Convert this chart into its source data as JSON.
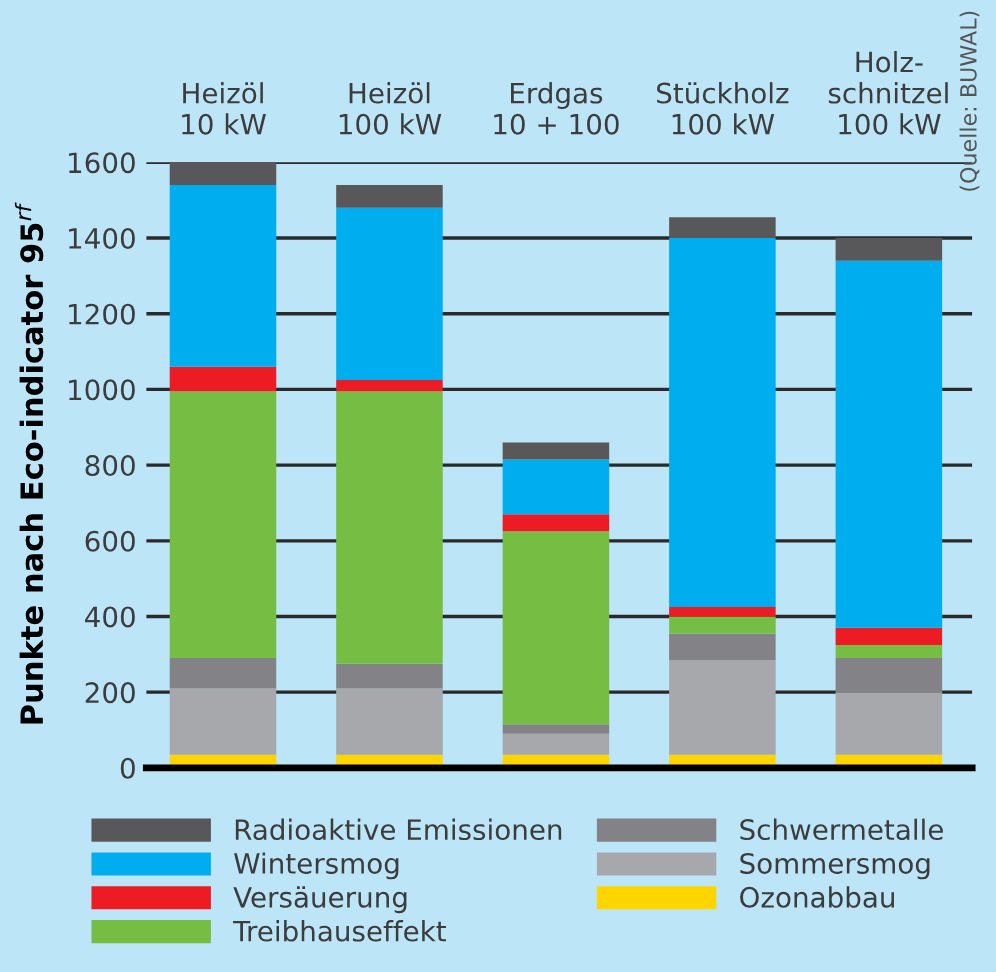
{
  "chart_data": {
    "type": "bar",
    "stacked": true,
    "ylabel": "Punkte nach Eco-indicator 95$^{rf}$",
    "categories": [
      "Heizöl\n10 kW",
      "Heizöl\n100 kW",
      "Erdgas\n10 + 100",
      "Stückholz\n100 kW",
      "Holz-\nschnitzel\n100 kW"
    ],
    "series": [
      {
        "name": "Ozonabbau",
        "color": "#ffd500",
        "values": [
          35,
          35,
          35,
          35,
          35
        ]
      },
      {
        "name": "Sommersmog",
        "color": "#a6a8ab",
        "values": [
          175,
          175,
          55,
          250,
          165
        ]
      },
      {
        "name": "Schwermetalle",
        "color": "#838387",
        "values": [
          80,
          65,
          25,
          70,
          90
        ]
      },
      {
        "name": "Treibhauseffekt",
        "color": "#76bd43",
        "values": [
          705,
          720,
          510,
          45,
          35
        ]
      },
      {
        "name": "Versäuerung",
        "color": "#ed1c24",
        "values": [
          65,
          30,
          45,
          25,
          45
        ]
      },
      {
        "name": "Wintersmog",
        "color": "#00aeef",
        "values": [
          480,
          455,
          145,
          975,
          970
        ]
      },
      {
        "name": "Radioaktive Emissionen",
        "color": "#58585a",
        "values": [
          60,
          60,
          45,
          55,
          60
        ]
      }
    ],
    "ylim": [
      0,
      1600
    ],
    "yticks": [
      0,
      200,
      400,
      600,
      800,
      1000,
      1200,
      1400,
      1600
    ],
    "grid": "y",
    "legend": "bottom",
    "annotations": [
      "(Quelle: BUWAL)"
    ]
  }
}
